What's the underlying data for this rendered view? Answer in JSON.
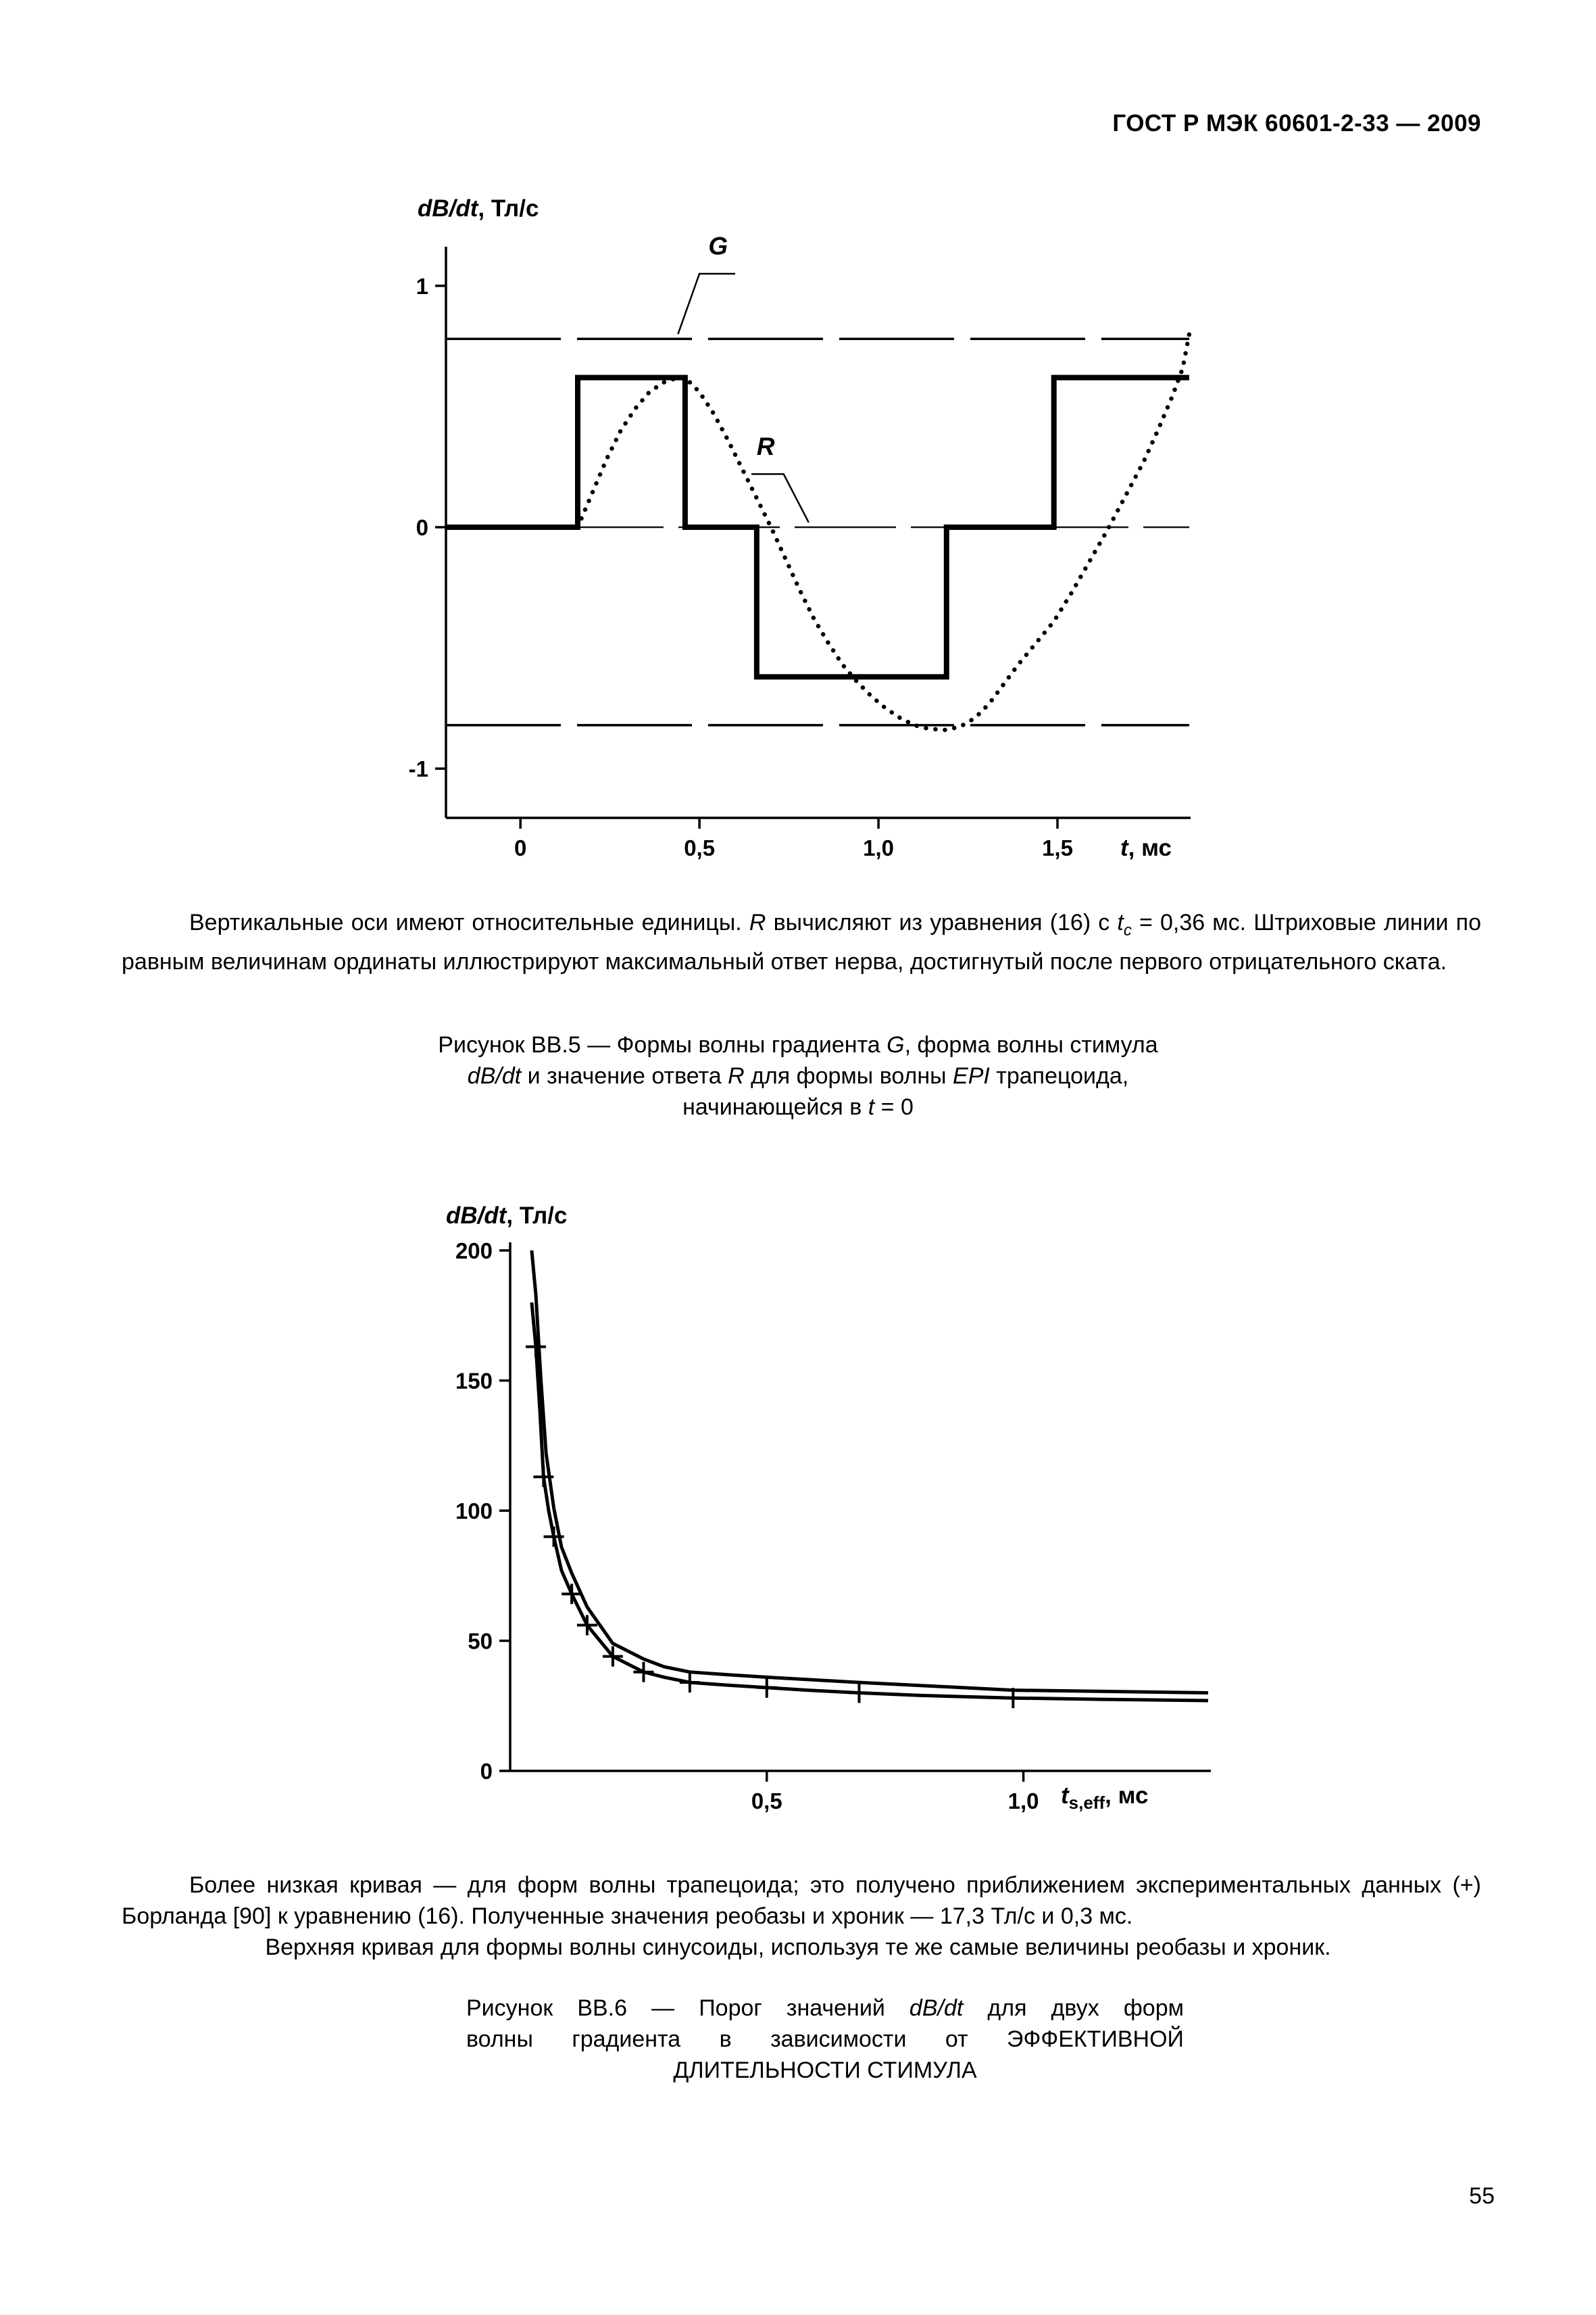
{
  "texts": {
    "header": "ГОСТ Р МЭК 60601-2-33 — 2009",
    "page_number": "55",
    "para_bb5": {
      "s1": "Вертикальные оси имеют относительные единицы. ",
      "s2": "R",
      "s3": " вычисляют из уравнения (16) с ",
      "s4": "t",
      "s5": "c",
      "s6": " = 0,36 мс. Штриховые линии по равным величинам ординаты иллюстрируют максимальный ответ нерва, достигнутый после первого отрицательного ската."
    },
    "caption_bb5": {
      "l1a": "Рисунок ВВ.5 — Формы волны градиента ",
      "l1b": "G",
      "l1c": ", форма волны стимула",
      "l2a": "dB/dt",
      "l2b": " и значение ответа ",
      "l2c": "R",
      "l2d": " для формы волны ",
      "l2e": "EPI",
      "l2f": " трапецоида,",
      "l3a": "начинающейся в ",
      "l3b": "t",
      "l3c": " = 0"
    },
    "para_bb6": {
      "s1": "Более низкая кривая — для форм волны трапецоида; это получено приближением экспериментальных данных (+) Борланда [90] к уравнению (16). Полученные значения реобазы и хроник — 17,3 Тл/с и 0,3 мс.",
      "s2": "Верхняя кривая для формы волны синусоиды, используя те же самые величины реобазы и хроник."
    },
    "caption_bb6": {
      "l1a": "Рисунок ВВ.6 — Порог значений ",
      "l1b": "dB/dt",
      "l1c": " для двух форм",
      "l2": "волны градиента в зависимости от ЭФФЕКТИВНОЙ",
      "l3": "ДЛИТЕЛЬНОСТИ СТИМУЛА"
    }
  },
  "chart_data": [
    {
      "figure": "ВВ.5",
      "type": "line",
      "title": "Формы волны градиента G, форма волны стимула dB/dt и значение ответа R для формы волны EPI трапецоида, начинающейся в t = 0",
      "ylabel": {
        "italic": "dB/dt",
        "rest": ", Тл/с"
      },
      "xlabel": {
        "italic": "t",
        "rest": ", мс"
      },
      "xlim": [
        -0.208,
        1.868
      ],
      "ylim": [
        -1.204,
        1.26
      ],
      "zero_line": true,
      "x_ticks": [
        {
          "v": 0,
          "label": "0"
        },
        {
          "v": 0.5,
          "label": "0,5"
        },
        {
          "v": 1.0,
          "label": "1,0"
        },
        {
          "v": 1.5,
          "label": "1,5"
        }
      ],
      "y_ticks": [
        {
          "v": 1,
          "label": "1"
        },
        {
          "v": 0,
          "label": "0"
        },
        {
          "v": -1,
          "label": "-1"
        }
      ],
      "series": [
        {
          "name": "G-plateau-positive",
          "style": "dashed",
          "points": [
            [
              -0.208,
              0.78
            ],
            [
              1.868,
              0.78
            ]
          ]
        },
        {
          "name": "G-plateau-negative",
          "style": "dashed",
          "points": [
            [
              -0.208,
              -0.82
            ],
            [
              1.868,
              -0.82
            ]
          ]
        },
        {
          "name": "dBdt-stimulus",
          "style": "solid-thick",
          "points": [
            [
              -0.208,
              0
            ],
            [
              0.16,
              0
            ],
            [
              0.16,
              0.62
            ],
            [
              0.46,
              0.62
            ],
            [
              0.46,
              0
            ],
            [
              0.66,
              0
            ],
            [
              0.66,
              -0.62
            ],
            [
              1.19,
              -0.62
            ],
            [
              1.19,
              0
            ],
            [
              1.49,
              0
            ],
            [
              1.49,
              0.62
            ],
            [
              1.868,
              0.62
            ]
          ]
        },
        {
          "name": "R-response",
          "style": "dotted",
          "points": [
            [
              0.16,
              0
            ],
            [
              0.2,
              0.14
            ],
            [
              0.24,
              0.28
            ],
            [
              0.28,
              0.4
            ],
            [
              0.32,
              0.49
            ],
            [
              0.36,
              0.56
            ],
            [
              0.4,
              0.6
            ],
            [
              0.44,
              0.62
            ],
            [
              0.46,
              0.62
            ],
            [
              0.5,
              0.56
            ],
            [
              0.54,
              0.47
            ],
            [
              0.58,
              0.36
            ],
            [
              0.62,
              0.24
            ],
            [
              0.66,
              0.12
            ],
            [
              0.7,
              0.0
            ],
            [
              0.74,
              -0.13
            ],
            [
              0.78,
              -0.26
            ],
            [
              0.82,
              -0.38
            ],
            [
              0.86,
              -0.48
            ],
            [
              0.9,
              -0.57
            ],
            [
              0.94,
              -0.64
            ],
            [
              0.98,
              -0.7
            ],
            [
              1.02,
              -0.75
            ],
            [
              1.06,
              -0.79
            ],
            [
              1.1,
              -0.82
            ],
            [
              1.14,
              -0.835
            ],
            [
              1.19,
              -0.84
            ],
            [
              1.23,
              -0.825
            ],
            [
              1.27,
              -0.79
            ],
            [
              1.31,
              -0.73
            ],
            [
              1.35,
              -0.65
            ],
            [
              1.39,
              -0.57
            ],
            [
              1.44,
              -0.48
            ],
            [
              1.49,
              -0.39
            ],
            [
              1.54,
              -0.27
            ],
            [
              1.59,
              -0.14
            ],
            [
              1.64,
              -0.01
            ],
            [
              1.69,
              0.13
            ],
            [
              1.74,
              0.27
            ],
            [
              1.78,
              0.4
            ],
            [
              1.82,
              0.54
            ],
            [
              1.85,
              0.66
            ],
            [
              1.868,
              0.8
            ]
          ]
        }
      ],
      "annotations": [
        {
          "text": "G",
          "x": 0.525,
          "y": 1.13,
          "leader": [
            [
              0.6,
              1.05
            ],
            [
              0.5,
              1.05
            ],
            [
              0.44,
              0.8
            ]
          ]
        },
        {
          "text": "R",
          "x": 0.66,
          "y": 0.3,
          "leader": [
            [
              0.645,
              0.22
            ],
            [
              0.735,
              0.22
            ],
            [
              0.805,
              0.02
            ]
          ]
        }
      ]
    },
    {
      "figure": "ВВ.6",
      "type": "line",
      "title": "Порог значений dB/dt для двух форм волны градиента в зависимости от ЭФФЕКТИВНОЙ ДЛИТЕЛЬНОСТИ СТИМУЛА",
      "ylabel": {
        "italic": "dB/dt",
        "rest": ", Тл/с"
      },
      "xlabel": {
        "italic": "t",
        "sub": "s,eff",
        "rest": ", мс"
      },
      "xlim": [
        0,
        1.36
      ],
      "ylim": [
        0,
        200
      ],
      "zero_line": false,
      "rheobase": "17,3 Тл/с",
      "chronaxie": "0,3 мс",
      "x_ticks": [
        {
          "v": 0.5,
          "label": "0,5"
        },
        {
          "v": 1.0,
          "label": "1,0"
        }
      ],
      "y_ticks": [
        {
          "v": 0,
          "label": "0"
        },
        {
          "v": 50,
          "label": "50"
        },
        {
          "v": 100,
          "label": "100"
        },
        {
          "v": 150,
          "label": "150"
        },
        {
          "v": 200,
          "label": "200"
        }
      ],
      "series": [
        {
          "name": "threshold-sinusoid-upper",
          "style": "solid",
          "points": [
            [
              0.042,
              200
            ],
            [
              0.05,
              183
            ],
            [
              0.06,
              150
            ],
            [
              0.07,
              122
            ],
            [
              0.085,
              101
            ],
            [
              0.1,
              86
            ],
            [
              0.12,
              76
            ],
            [
              0.15,
              63
            ],
            [
              0.2,
              49
            ],
            [
              0.26,
              43
            ],
            [
              0.3,
              40
            ],
            [
              0.35,
              38
            ],
            [
              0.42,
              37
            ],
            [
              0.5,
              36
            ],
            [
              0.68,
              34
            ],
            [
              0.98,
              31
            ],
            [
              1.36,
              30
            ]
          ]
        },
        {
          "name": "threshold-trapezoid-lower",
          "style": "solid",
          "points": [
            [
              0.042,
              180
            ],
            [
              0.05,
              163
            ],
            [
              0.058,
              138
            ],
            [
              0.065,
              113
            ],
            [
              0.075,
              100
            ],
            [
              0.085,
              90
            ],
            [
              0.1,
              77
            ],
            [
              0.12,
              68
            ],
            [
              0.15,
              56
            ],
            [
              0.175,
              50
            ],
            [
              0.2,
              44
            ],
            [
              0.23,
              41
            ],
            [
              0.26,
              38
            ],
            [
              0.3,
              36
            ],
            [
              0.35,
              34
            ],
            [
              0.42,
              33
            ],
            [
              0.5,
              32
            ],
            [
              0.58,
              31
            ],
            [
              0.68,
              30
            ],
            [
              0.8,
              29
            ],
            [
              0.98,
              28
            ],
            [
              1.15,
              27.5
            ],
            [
              1.36,
              27
            ]
          ]
        },
        {
          "name": "borland-data-points",
          "style": "plus",
          "points": [
            [
              0.05,
              163
            ],
            [
              0.065,
              113
            ],
            [
              0.085,
              90
            ],
            [
              0.12,
              68
            ],
            [
              0.15,
              56
            ],
            [
              0.2,
              44
            ],
            [
              0.26,
              38
            ],
            [
              0.35,
              34
            ],
            [
              0.5,
              32
            ],
            [
              0.68,
              30
            ],
            [
              0.98,
              28
            ]
          ]
        }
      ]
    }
  ]
}
